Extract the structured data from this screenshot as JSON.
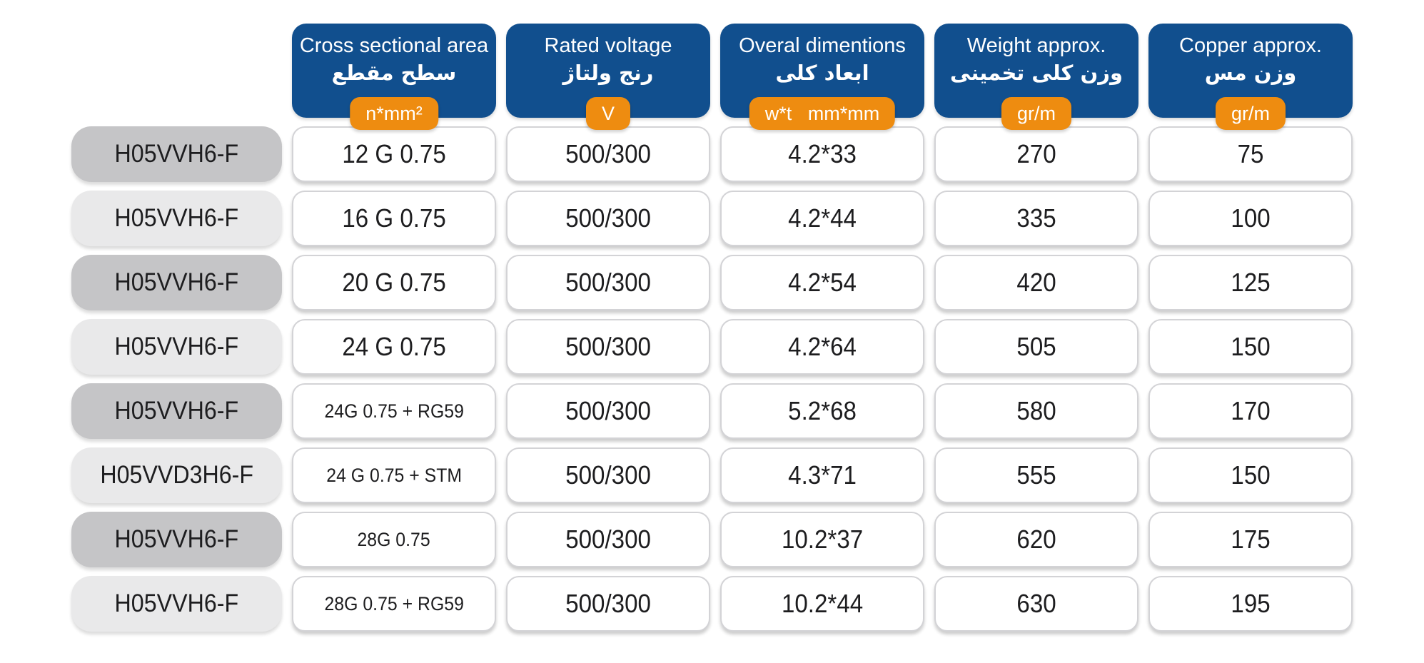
{
  "table": {
    "columns": [
      {
        "en": "Cross sectional area",
        "fa": "سطح مقطع",
        "unit": "n*mm²"
      },
      {
        "en": "Rated voltage",
        "fa": "رنج ولتاژ",
        "unit": "V"
      },
      {
        "en": "Overal dimentions",
        "fa": "ابعاد کلی",
        "unit": "w*t   mm*mm"
      },
      {
        "en": "Weight approx.",
        "fa": "وزن کلی تخمینی",
        "unit": "gr/m"
      },
      {
        "en": "Copper approx.",
        "fa": "وزن مس",
        "unit": "gr/m"
      }
    ],
    "rows": [
      {
        "type": "H05VVH6-F",
        "cross_section": "12 G 0.75",
        "voltage": "500/300",
        "dimensions": "4.2*33",
        "weight": "270",
        "copper": "75"
      },
      {
        "type": "H05VVH6-F",
        "cross_section": "16 G 0.75",
        "voltage": "500/300",
        "dimensions": "4.2*44",
        "weight": "335",
        "copper": "100"
      },
      {
        "type": "H05VVH6-F",
        "cross_section": "20 G 0.75",
        "voltage": "500/300",
        "dimensions": "4.2*54",
        "weight": "420",
        "copper": "125"
      },
      {
        "type": "H05VVH6-F",
        "cross_section": "24 G 0.75",
        "voltage": "500/300",
        "dimensions": "4.2*64",
        "weight": "505",
        "copper": "150"
      },
      {
        "type": "H05VVH6-F",
        "cross_section": "24G 0.75 + RG59",
        "voltage": "500/300",
        "dimensions": "5.2*68",
        "weight": "580",
        "copper": "170"
      },
      {
        "type": "H05VVD3H6-F",
        "cross_section": "24 G 0.75 + STM",
        "voltage": "500/300",
        "dimensions": "4.3*71",
        "weight": "555",
        "copper": "150"
      },
      {
        "type": "H05VVH6-F",
        "cross_section": "28G 0.75",
        "voltage": "500/300",
        "dimensions": "10.2*37",
        "weight": "620",
        "copper": "175"
      },
      {
        "type": "H05VVH6-F",
        "cross_section": "28G 0.75 + RG59",
        "voltage": "500/300",
        "dimensions": "10.2*44",
        "weight": "630",
        "copper": "195"
      }
    ]
  },
  "colors": {
    "header_blue": "#114F8E",
    "badge_orange": "#EE8C10",
    "pill_dark": "#C5C5C7",
    "pill_light": "#E9E9EA",
    "cell_border": "#D3D3D6",
    "text": "#1D1D1F"
  }
}
